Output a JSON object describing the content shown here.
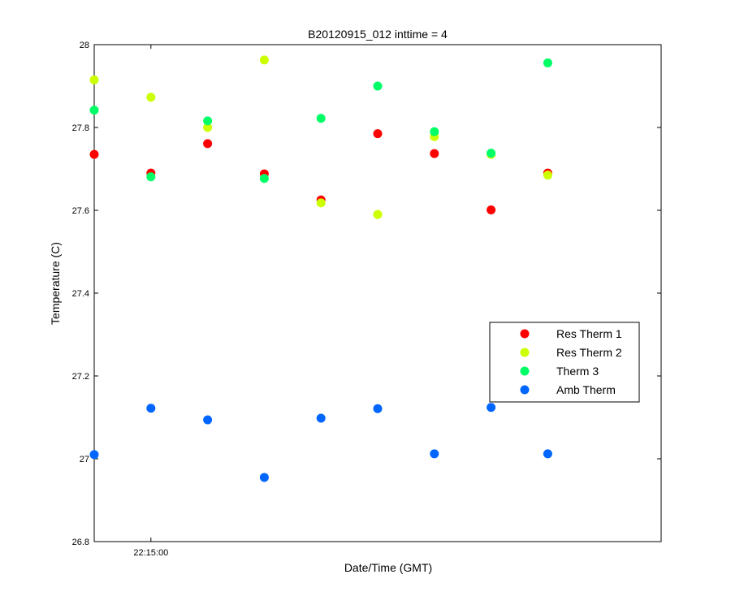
{
  "chart_data": {
    "type": "scatter",
    "title": "B20120915_012 inttime = 4",
    "xlabel": "Date/Time (GMT)",
    "ylabel": "Temperature (C)",
    "ylim": [
      26.8,
      28
    ],
    "yticks": [
      26.8,
      27,
      27.2,
      27.4,
      27.6,
      27.8,
      28
    ],
    "ytick_labels": [
      "26.8",
      "27",
      "27.2",
      "27.4",
      "27.6",
      "27.8",
      "28"
    ],
    "xlim": [
      0,
      10
    ],
    "xticks": [
      1
    ],
    "xtick_labels": [
      "22:15:00"
    ],
    "x": [
      0,
      1,
      2,
      3,
      4,
      5,
      6,
      7,
      8
    ],
    "grid": false,
    "legend_position": "right",
    "series": [
      {
        "name": "Res Therm 1",
        "color": "#ff0000",
        "values": [
          27.735,
          27.69,
          27.761,
          27.688,
          27.625,
          27.785,
          27.737,
          27.601,
          27.69
        ]
      },
      {
        "name": "Res Therm 2",
        "color": "#ccff00",
        "values": [
          27.915,
          27.873,
          27.8,
          27.963,
          27.618,
          27.59,
          27.778,
          27.735,
          27.685
        ]
      },
      {
        "name": "Therm 3",
        "color": "#00ff66",
        "values": [
          27.842,
          27.681,
          27.816,
          27.677,
          27.822,
          27.9,
          27.79,
          27.738,
          27.956
        ]
      },
      {
        "name": "Amb Therm",
        "color": "#0066ff",
        "values": [
          27.01,
          27.122,
          27.094,
          26.955,
          27.098,
          27.121,
          27.012,
          27.124,
          27.012
        ]
      }
    ]
  }
}
